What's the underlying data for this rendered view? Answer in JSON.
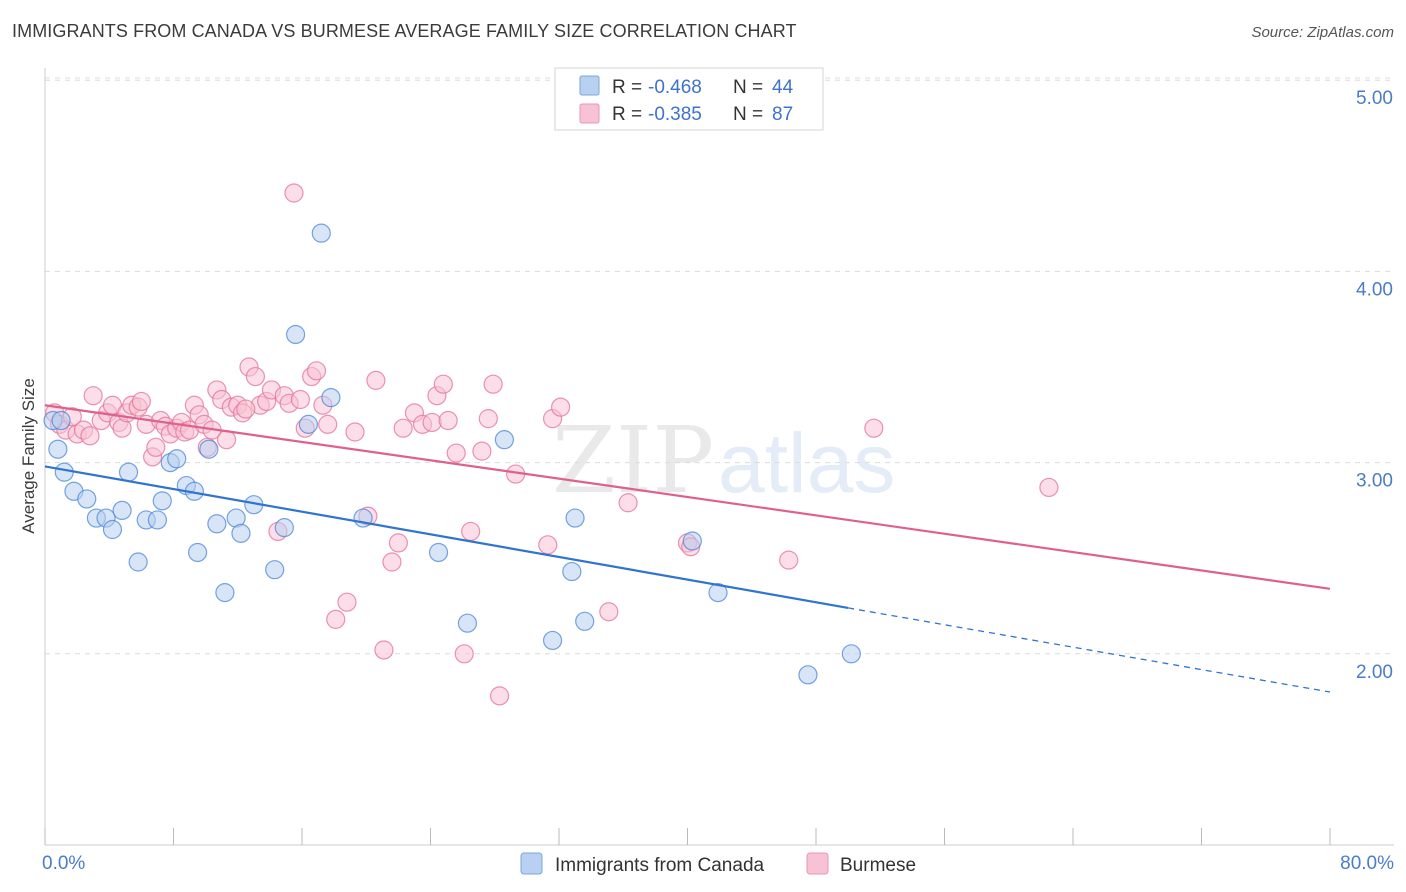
{
  "header": {
    "title": "IMMIGRANTS FROM CANADA VS BURMESE AVERAGE FAMILY SIZE CORRELATION CHART",
    "source": "Source: ZipAtlas.com"
  },
  "watermark": {
    "zip": "ZIP",
    "atlas": "atlas"
  },
  "colors": {
    "canada": "#4a86d8",
    "canada_fill": "#b8d0f1",
    "canada_line": "#2f74d0",
    "burmese": "#e66f98",
    "burmese_fill": "#f7c3d4",
    "burmese_line": "#e0608d",
    "tick_label": "#4a7cc9",
    "grid": "#dcdcdc"
  },
  "legend_top": {
    "rows": [
      {
        "series": "Immigrants from Canada",
        "r_label": "R =",
        "r_value": "-0.468",
        "n_label": "N =",
        "n_value": "44"
      },
      {
        "series": "Burmese",
        "r_label": "R =",
        "r_value": "-0.385",
        "n_label": "N =",
        "n_value": "87"
      }
    ]
  },
  "chart_data": {
    "type": "scatter",
    "title": "IMMIGRANTS FROM CANADA VS BURMESE AVERAGE FAMILY SIZE CORRELATION CHART",
    "xlabel": "",
    "ylabel": "Average Family Size",
    "xlim": [
      0,
      80
    ],
    "ylim": [
      1.0,
      5.15
    ],
    "x_ticks": [
      0,
      8,
      16,
      24,
      32,
      40,
      48,
      56,
      64,
      72,
      80
    ],
    "x_tick_labels": {
      "first": "0.0%",
      "last": "80.0%"
    },
    "y_ticks": [
      2.0,
      3.0,
      4.0,
      5.0
    ],
    "y_tick_labels": [
      "2.00",
      "3.00",
      "4.00",
      "5.00"
    ],
    "grid": true,
    "legend_position": "bottom-center",
    "series": [
      {
        "name": "Immigrants from Canada",
        "color": "#4a86d8",
        "trend": {
          "x": [
            0,
            50
          ],
          "y": [
            2.98,
            2.24
          ],
          "dashed_to": [
            80,
            1.8
          ]
        },
        "points": [
          [
            0.5,
            3.22
          ],
          [
            0.8,
            3.07
          ],
          [
            1.2,
            2.95
          ],
          [
            1.8,
            2.85
          ],
          [
            2.6,
            2.81
          ],
          [
            3.2,
            2.71
          ],
          [
            3.8,
            2.71
          ],
          [
            4.2,
            2.65
          ],
          [
            4.8,
            2.75
          ],
          [
            5.2,
            2.95
          ],
          [
            5.8,
            2.48
          ],
          [
            6.3,
            2.7
          ],
          [
            7.0,
            2.7
          ],
          [
            7.3,
            2.8
          ],
          [
            7.8,
            3.0
          ],
          [
            8.2,
            3.02
          ],
          [
            8.8,
            2.88
          ],
          [
            9.5,
            2.53
          ],
          [
            9.3,
            2.85
          ],
          [
            10.2,
            3.07
          ],
          [
            10.7,
            2.68
          ],
          [
            11.2,
            2.32
          ],
          [
            11.9,
            2.71
          ],
          [
            12.2,
            2.63
          ],
          [
            13.0,
            2.78
          ],
          [
            14.3,
            2.44
          ],
          [
            14.9,
            2.66
          ],
          [
            15.6,
            3.67
          ],
          [
            16.4,
            3.2
          ],
          [
            17.2,
            4.2
          ],
          [
            17.8,
            3.34
          ],
          [
            19.8,
            2.71
          ],
          [
            24.5,
            2.53
          ],
          [
            26.3,
            2.16
          ],
          [
            28.6,
            3.12
          ],
          [
            31.6,
            2.07
          ],
          [
            32.8,
            2.43
          ],
          [
            33.6,
            2.17
          ],
          [
            33.0,
            2.71
          ],
          [
            40.3,
            2.59
          ],
          [
            41.9,
            2.32
          ],
          [
            47.5,
            1.89
          ],
          [
            50.2,
            2.0
          ],
          [
            1.0,
            3.22
          ]
        ]
      },
      {
        "name": "Burmese",
        "color": "#e66f98",
        "trend": {
          "x": [
            0,
            80
          ],
          "y": [
            3.3,
            2.34
          ]
        },
        "points": [
          [
            0.6,
            3.26
          ],
          [
            0.9,
            3.2
          ],
          [
            1.3,
            3.17
          ],
          [
            1.7,
            3.24
          ],
          [
            2.0,
            3.15
          ],
          [
            2.4,
            3.17
          ],
          [
            2.8,
            3.14
          ],
          [
            3.0,
            3.35
          ],
          [
            3.5,
            3.22
          ],
          [
            3.9,
            3.26
          ],
          [
            4.2,
            3.3
          ],
          [
            4.6,
            3.21
          ],
          [
            4.8,
            3.18
          ],
          [
            5.1,
            3.26
          ],
          [
            5.4,
            3.3
          ],
          [
            5.8,
            3.29
          ],
          [
            6.0,
            3.32
          ],
          [
            6.3,
            3.2
          ],
          [
            6.7,
            3.03
          ],
          [
            6.9,
            3.08
          ],
          [
            7.2,
            3.22
          ],
          [
            7.5,
            3.19
          ],
          [
            7.8,
            3.15
          ],
          [
            8.2,
            3.18
          ],
          [
            8.5,
            3.21
          ],
          [
            8.7,
            3.16
          ],
          [
            9.0,
            3.17
          ],
          [
            9.3,
            3.3
          ],
          [
            9.6,
            3.25
          ],
          [
            9.9,
            3.2
          ],
          [
            10.1,
            3.08
          ],
          [
            10.4,
            3.17
          ],
          [
            10.7,
            3.38
          ],
          [
            11.0,
            3.33
          ],
          [
            11.3,
            3.12
          ],
          [
            11.6,
            3.29
          ],
          [
            12.0,
            3.3
          ],
          [
            12.3,
            3.26
          ],
          [
            12.7,
            3.5
          ],
          [
            13.1,
            3.45
          ],
          [
            13.4,
            3.3
          ],
          [
            13.8,
            3.32
          ],
          [
            14.1,
            3.38
          ],
          [
            14.5,
            2.64
          ],
          [
            14.9,
            3.35
          ],
          [
            15.2,
            3.31
          ],
          [
            15.5,
            4.41
          ],
          [
            15.9,
            3.33
          ],
          [
            16.2,
            3.18
          ],
          [
            16.6,
            3.45
          ],
          [
            16.9,
            3.48
          ],
          [
            17.3,
            3.3
          ],
          [
            17.6,
            3.2
          ],
          [
            18.1,
            2.18
          ],
          [
            18.8,
            2.27
          ],
          [
            19.3,
            3.16
          ],
          [
            20.1,
            2.72
          ],
          [
            20.6,
            3.43
          ],
          [
            21.1,
            2.02
          ],
          [
            21.6,
            2.48
          ],
          [
            22.0,
            2.58
          ],
          [
            23.0,
            3.26
          ],
          [
            23.5,
            3.2
          ],
          [
            24.1,
            3.21
          ],
          [
            24.4,
            3.35
          ],
          [
            24.8,
            3.41
          ],
          [
            25.1,
            3.22
          ],
          [
            25.6,
            3.05
          ],
          [
            26.1,
            2.0
          ],
          [
            26.5,
            2.64
          ],
          [
            27.2,
            3.06
          ],
          [
            27.6,
            3.23
          ],
          [
            27.9,
            3.41
          ],
          [
            28.3,
            1.78
          ],
          [
            29.3,
            2.94
          ],
          [
            31.3,
            2.57
          ],
          [
            31.6,
            3.23
          ],
          [
            32.1,
            3.29
          ],
          [
            35.1,
            2.22
          ],
          [
            36.3,
            2.79
          ],
          [
            40.0,
            2.58
          ],
          [
            40.2,
            2.56
          ],
          [
            46.3,
            2.49
          ],
          [
            51.6,
            3.18
          ],
          [
            62.5,
            2.87
          ],
          [
            22.3,
            3.18
          ],
          [
            12.5,
            3.28
          ]
        ]
      }
    ]
  },
  "legend_bottom": {
    "items": [
      {
        "label": "Immigrants from Canada"
      },
      {
        "label": "Burmese"
      }
    ]
  }
}
